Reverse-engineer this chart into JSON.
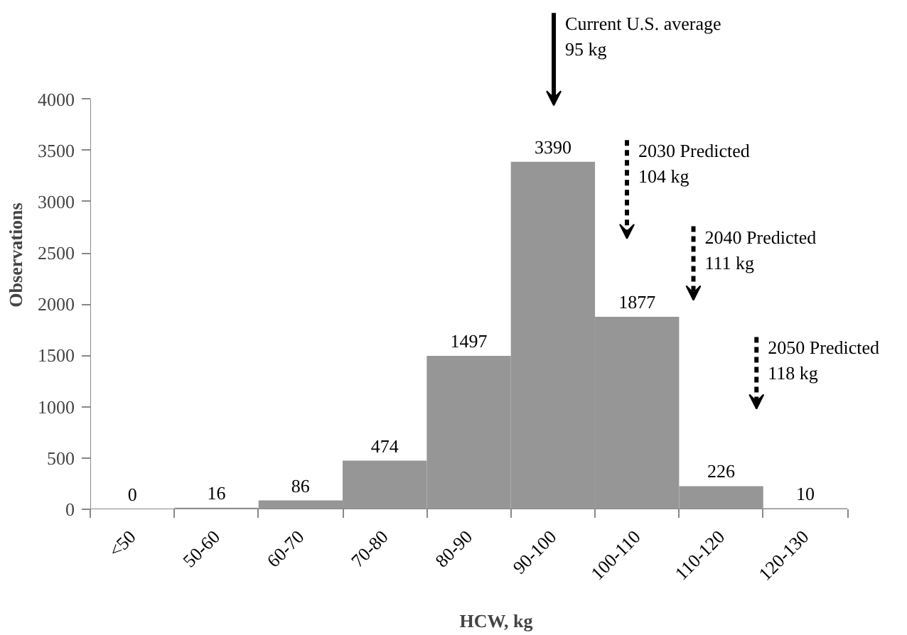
{
  "chart_data": {
    "type": "bar",
    "xlabel": "HCW, kg",
    "ylabel": "Observations",
    "categories": [
      "<50",
      "50-60",
      "60-70",
      "70-80",
      "80-90",
      "90-100",
      "100-110",
      "110-120",
      "120-130"
    ],
    "values": [
      0,
      16,
      86,
      474,
      1497,
      3390,
      1877,
      226,
      10
    ],
    "color": "#969696",
    "data_labels": true,
    "grid": false,
    "ylim": [
      0,
      4000
    ],
    "yticks": [
      0,
      500,
      1000,
      1500,
      2000,
      2500,
      3000,
      3500,
      4000
    ],
    "annotations": [
      "Current U.S. average\n95 kg",
      "2030 Predicted\n104 kg",
      "2040 Predicted\n111 kg",
      "2050 Predicted\n118 kg"
    ]
  }
}
